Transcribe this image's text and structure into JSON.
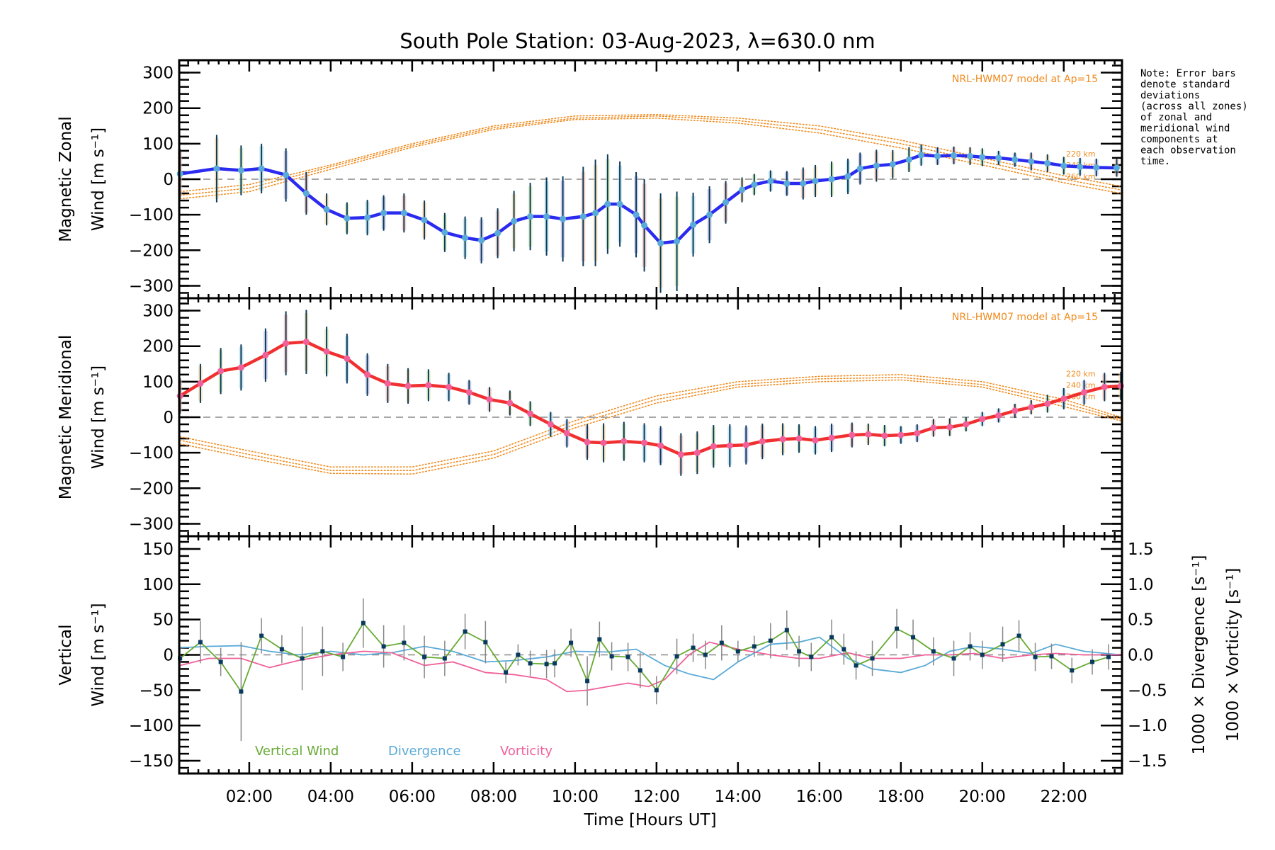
{
  "chart_data": {
    "title": "South Pole Station: 03-Aug-2023, λ=630.0 nm",
    "xlabel": "Time [Hours UT]",
    "x_range_hours": [
      0.28,
      23.43
    ],
    "x_ticks": [
      {
        "h": 2,
        "label": "02:00"
      },
      {
        "h": 4,
        "label": "04:00"
      },
      {
        "h": 6,
        "label": "06:00"
      },
      {
        "h": 8,
        "label": "08:00"
      },
      {
        "h": 10,
        "label": "10:00"
      },
      {
        "h": 12,
        "label": "12:00"
      },
      {
        "h": 14,
        "label": "14:00"
      },
      {
        "h": 16,
        "label": "16:00"
      },
      {
        "h": 18,
        "label": "18:00"
      },
      {
        "h": 20,
        "label": "20:00"
      },
      {
        "h": 22,
        "label": "22:00"
      }
    ],
    "note": [
      "Note: Error bars",
      "denote standard",
      "deviations",
      "(across all zones)",
      "of zonal and",
      "meridional wind",
      "components at",
      "each observation",
      "time."
    ],
    "panels": [
      {
        "id": "zonal",
        "type": "line",
        "ylabel_line1": "Magnetic Zonal",
        "ylabel_line2": "Wind [m s⁻¹]",
        "ylim": [
          -335,
          335
        ],
        "yticks": [
          300,
          200,
          100,
          0,
          -100,
          -200,
          -300
        ],
        "ytick_labels": [
          "300",
          "200",
          "100",
          "0",
          "−100",
          "−200",
          "−300"
        ],
        "model_label": "NRL-HWM07 model at Ap=15",
        "altitude_labels": [
          "220 km",
          "240 km",
          "260 km"
        ],
        "series": {
          "name": "Zonal wind",
          "color": "#2b2bf0",
          "x": [
            0.3,
            1.2,
            1.8,
            2.3,
            2.9,
            3.4,
            3.9,
            4.4,
            4.9,
            5.3,
            5.8,
            6.3,
            6.8,
            7.3,
            7.7,
            8.1,
            8.5,
            8.9,
            9.3,
            9.7,
            10.2,
            10.5,
            10.8,
            11.1,
            11.5,
            11.7,
            12.1,
            12.5,
            12.9,
            13.3,
            13.7,
            14.1,
            14.4,
            14.8,
            15.2,
            15.6,
            15.9,
            16.3,
            16.7,
            17.0,
            17.4,
            17.8,
            18.2,
            18.5,
            18.9,
            19.3,
            19.7,
            20.0,
            20.4,
            20.8,
            21.2,
            21.6,
            22.0,
            22.4,
            22.8,
            23.3
          ],
          "y": [
            15,
            30,
            25,
            30,
            12,
            -40,
            -85,
            -110,
            -108,
            -95,
            -95,
            -115,
            -150,
            -165,
            -172,
            -152,
            -118,
            -105,
            -105,
            -112,
            -105,
            -95,
            -70,
            -70,
            -100,
            -130,
            -180,
            -175,
            -128,
            -100,
            -65,
            -30,
            -15,
            -5,
            -12,
            -12,
            -5,
            0,
            8,
            30,
            38,
            42,
            55,
            68,
            65,
            67,
            65,
            62,
            60,
            55,
            50,
            45,
            38,
            35,
            33,
            32
          ],
          "err": [
            70,
            95,
            70,
            70,
            75,
            60,
            45,
            45,
            50,
            50,
            55,
            55,
            55,
            60,
            65,
            70,
            85,
            95,
            110,
            120,
            140,
            150,
            140,
            120,
            120,
            130,
            140,
            140,
            90,
            80,
            60,
            35,
            30,
            30,
            35,
            45,
            45,
            50,
            50,
            45,
            45,
            40,
            35,
            30,
            25,
            25,
            25,
            25,
            20,
            20,
            25,
            25,
            25,
            25,
            25,
            25
          ]
        },
        "model": {
          "name": "NRL-HWM07",
          "color": "#f08a1c",
          "curves": [
            {
              "alt": "220 km",
              "x": [
                0.3,
                2,
                4,
                6,
                8,
                10,
                12,
                14,
                16,
                18,
                20,
                22,
                23.4
              ],
              "y": [
                -35,
                -15,
                40,
                100,
                150,
                178,
                182,
                172,
                150,
                110,
                60,
                10,
                -20
              ]
            },
            {
              "alt": "240 km",
              "x": [
                0.3,
                2,
                4,
                6,
                8,
                10,
                12,
                14,
                16,
                18,
                20,
                22,
                23.4
              ],
              "y": [
                -45,
                -25,
                35,
                95,
                145,
                172,
                178,
                165,
                140,
                100,
                50,
                0,
                -30
              ]
            },
            {
              "alt": "260 km",
              "x": [
                0.3,
                2,
                4,
                6,
                8,
                10,
                12,
                14,
                16,
                18,
                20,
                22,
                23.4
              ],
              "y": [
                -55,
                -35,
                28,
                90,
                140,
                168,
                172,
                158,
                130,
                88,
                40,
                -10,
                -40
              ]
            }
          ]
        }
      },
      {
        "id": "meridional",
        "type": "line",
        "ylabel_line1": "Magnetic Meridional",
        "ylabel_line2": "Wind [m s⁻¹]",
        "ylim": [
          -335,
          335
        ],
        "yticks": [
          300,
          200,
          100,
          0,
          -100,
          -200,
          -300
        ],
        "ytick_labels": [
          "300",
          "200",
          "100",
          "0",
          "−100",
          "−200",
          "−300"
        ],
        "model_label": "NRL-HWM07 model at Ap=15",
        "altitude_labels": [
          "220 km",
          "240 km",
          "260 km"
        ],
        "series": {
          "name": "Meridional wind",
          "color": "#f03030",
          "x": [
            0.3,
            0.8,
            1.3,
            1.8,
            2.4,
            2.9,
            3.4,
            3.9,
            4.4,
            4.9,
            5.4,
            5.9,
            6.4,
            6.9,
            7.4,
            7.9,
            8.4,
            8.9,
            9.4,
            9.8,
            10.3,
            10.7,
            11.2,
            11.7,
            12.1,
            12.6,
            13.0,
            13.4,
            13.8,
            14.2,
            14.6,
            15.1,
            15.5,
            15.9,
            16.3,
            16.8,
            17.2,
            17.6,
            18.0,
            18.4,
            18.8,
            19.2,
            19.6,
            20.0,
            20.4,
            20.8,
            21.2,
            21.6,
            22.0,
            22.5,
            23.0,
            23.4
          ],
          "y": [
            60,
            95,
            130,
            140,
            175,
            208,
            212,
            185,
            165,
            120,
            95,
            88,
            90,
            85,
            70,
            50,
            40,
            10,
            -20,
            -45,
            -70,
            -72,
            -68,
            -72,
            -80,
            -105,
            -100,
            -82,
            -80,
            -78,
            -68,
            -62,
            -60,
            -65,
            -58,
            -50,
            -48,
            -52,
            -50,
            -45,
            -30,
            -28,
            -20,
            -5,
            5,
            18,
            28,
            38,
            52,
            70,
            85,
            88
          ],
          "err": [
            50,
            55,
            65,
            65,
            75,
            90,
            90,
            70,
            70,
            60,
            55,
            50,
            45,
            40,
            35,
            35,
            35,
            35,
            35,
            40,
            50,
            55,
            55,
            55,
            55,
            60,
            60,
            60,
            60,
            55,
            50,
            45,
            40,
            40,
            40,
            35,
            30,
            30,
            25,
            25,
            25,
            25,
            20,
            20,
            20,
            20,
            20,
            25,
            30,
            35,
            40,
            40
          ]
        },
        "model": {
          "name": "NRL-HWM07",
          "color": "#f08a1c",
          "curves": [
            {
              "alt": "220 km",
              "x": [
                0.3,
                2,
                4,
                6,
                8,
                10,
                12,
                14,
                16,
                18,
                20,
                22,
                23.4
              ],
              "y": [
                -55,
                -95,
                -140,
                -140,
                -95,
                -10,
                60,
                100,
                115,
                120,
                100,
                50,
                0
              ]
            },
            {
              "alt": "240 km",
              "x": [
                0.3,
                2,
                4,
                6,
                8,
                10,
                12,
                14,
                16,
                18,
                20,
                22,
                23.4
              ],
              "y": [
                -65,
                -105,
                -150,
                -150,
                -105,
                -20,
                50,
                92,
                108,
                112,
                92,
                40,
                -5
              ]
            },
            {
              "alt": "260 km",
              "x": [
                0.3,
                2,
                4,
                6,
                8,
                10,
                12,
                14,
                16,
                18,
                20,
                22,
                23.4
              ],
              "y": [
                -75,
                -115,
                -158,
                -160,
                -115,
                -30,
                40,
                85,
                100,
                105,
                85,
                30,
                -10
              ]
            }
          ]
        }
      },
      {
        "id": "vertical",
        "type": "line",
        "ylabel_line1": "Vertical",
        "ylabel_line2": "Wind [m s⁻¹]",
        "ylabel_color": "#66aa33",
        "ylim": [
          -168,
          168
        ],
        "yticks": [
          150,
          100,
          50,
          0,
          -50,
          -100,
          -150
        ],
        "ytick_labels": [
          "150",
          "100",
          "50",
          "0",
          "−50",
          "−100",
          "−150"
        ],
        "y2lim": [
          -1.68,
          1.68
        ],
        "y2ticks": [
          1.5,
          1.0,
          0.5,
          0.0,
          -0.5,
          -1.0,
          -1.5
        ],
        "y2tick_labels": [
          "1.5",
          "1.0",
          "0.5",
          "0.0",
          "−0.5",
          "−1.0",
          "−1.5"
        ],
        "y2label_div": "1000 × Divergence [s⁻¹]",
        "y2label_vor": "1000 × Vorticity [s⁻¹]",
        "legend": [
          {
            "label": "Vertical Wind",
            "color": "#66aa33"
          },
          {
            "label": "Divergence",
            "color": "#5aaad8"
          },
          {
            "label": "Vorticity",
            "color": "#f0609a"
          }
        ],
        "vertical_wind": {
          "color": "#66aa33",
          "x": [
            0.3,
            0.8,
            1.3,
            1.8,
            2.3,
            2.8,
            3.3,
            3.8,
            4.3,
            4.8,
            5.3,
            5.8,
            6.3,
            6.8,
            7.3,
            7.8,
            8.3,
            8.6,
            8.9,
            9.3,
            9.5,
            9.9,
            10.3,
            10.6,
            10.9,
            11.3,
            11.6,
            12.0,
            12.5,
            12.9,
            13.2,
            13.6,
            14.0,
            14.4,
            14.8,
            15.2,
            15.5,
            15.8,
            16.3,
            16.6,
            16.9,
            17.3,
            17.9,
            18.3,
            18.8,
            19.3,
            19.7,
            20.0,
            20.5,
            20.9,
            21.3,
            21.7,
            22.2,
            22.7,
            23.1
          ],
          "y": [
            -5,
            18,
            -10,
            -52,
            27,
            8,
            -5,
            5,
            -3,
            45,
            12,
            17,
            -3,
            -5,
            33,
            18,
            -25,
            0,
            -12,
            -13,
            -12,
            17,
            -37,
            22,
            -2,
            -3,
            -22,
            -50,
            -2,
            10,
            0,
            17,
            5,
            12,
            20,
            35,
            5,
            -3,
            25,
            8,
            -15,
            -5,
            37,
            25,
            5,
            -5,
            12,
            0,
            15,
            27,
            -3,
            -2,
            -22,
            -10,
            -3
          ],
          "err": [
            15,
            30,
            20,
            70,
            25,
            20,
            45,
            35,
            20,
            35,
            30,
            25,
            30,
            25,
            25,
            30,
            15,
            15,
            18,
            20,
            20,
            20,
            35,
            25,
            20,
            20,
            25,
            20,
            25,
            20,
            20,
            25,
            15,
            15,
            25,
            28,
            22,
            20,
            25,
            22,
            20,
            25,
            28,
            25,
            20,
            25,
            20,
            20,
            25,
            22,
            20,
            18,
            18,
            18,
            18
          ]
        },
        "divergence": {
          "color": "#5aaad8",
          "x": [
            0.3,
            1.0,
            1.8,
            2.5,
            3.2,
            4.0,
            4.8,
            5.5,
            6.3,
            7.0,
            7.8,
            8.5,
            9.3,
            10.0,
            10.8,
            11.5,
            12.2,
            12.8,
            13.4,
            14.0,
            14.8,
            15.5,
            16.0,
            16.7,
            17.3,
            18.0,
            18.6,
            19.2,
            19.8,
            20.5,
            21.2,
            21.8,
            22.5,
            23.4
          ],
          "y": [
            0.1,
            0.12,
            0.13,
            0.05,
            0.0,
            0.05,
            0.0,
            0.03,
            0.12,
            0.05,
            -0.1,
            -0.08,
            -0.03,
            0.05,
            0.04,
            0.08,
            -0.15,
            -0.27,
            -0.35,
            -0.1,
            0.15,
            0.18,
            0.25,
            -0.05,
            -0.2,
            -0.25,
            -0.15,
            0.05,
            0.12,
            0.08,
            0.02,
            0.15,
            0.05,
            0.0
          ],
          "scale_note": "right axis (1000 x s^-1)"
        },
        "vorticity": {
          "color": "#f0609a",
          "x": [
            0.3,
            1.0,
            1.8,
            2.5,
            3.2,
            4.0,
            4.8,
            5.5,
            6.3,
            7.0,
            7.8,
            8.5,
            9.3,
            9.8,
            10.3,
            10.8,
            11.3,
            11.8,
            12.2,
            12.8,
            13.3,
            14.0,
            14.8,
            15.5,
            16.0,
            16.7,
            17.3,
            18.0,
            18.6,
            19.2,
            19.8,
            20.5,
            21.2,
            21.8,
            22.5,
            23.4
          ],
          "y": [
            -0.15,
            -0.05,
            -0.05,
            -0.18,
            -0.08,
            0.0,
            0.05,
            0.03,
            -0.15,
            -0.1,
            -0.25,
            -0.28,
            -0.35,
            -0.52,
            -0.5,
            -0.45,
            -0.4,
            -0.45,
            -0.35,
            0.0,
            0.18,
            0.08,
            0.0,
            -0.05,
            -0.05,
            0.03,
            -0.05,
            -0.05,
            0.0,
            0.0,
            0.02,
            -0.05,
            0.0,
            0.02,
            0.0,
            0.0
          ]
        }
      }
    ]
  }
}
